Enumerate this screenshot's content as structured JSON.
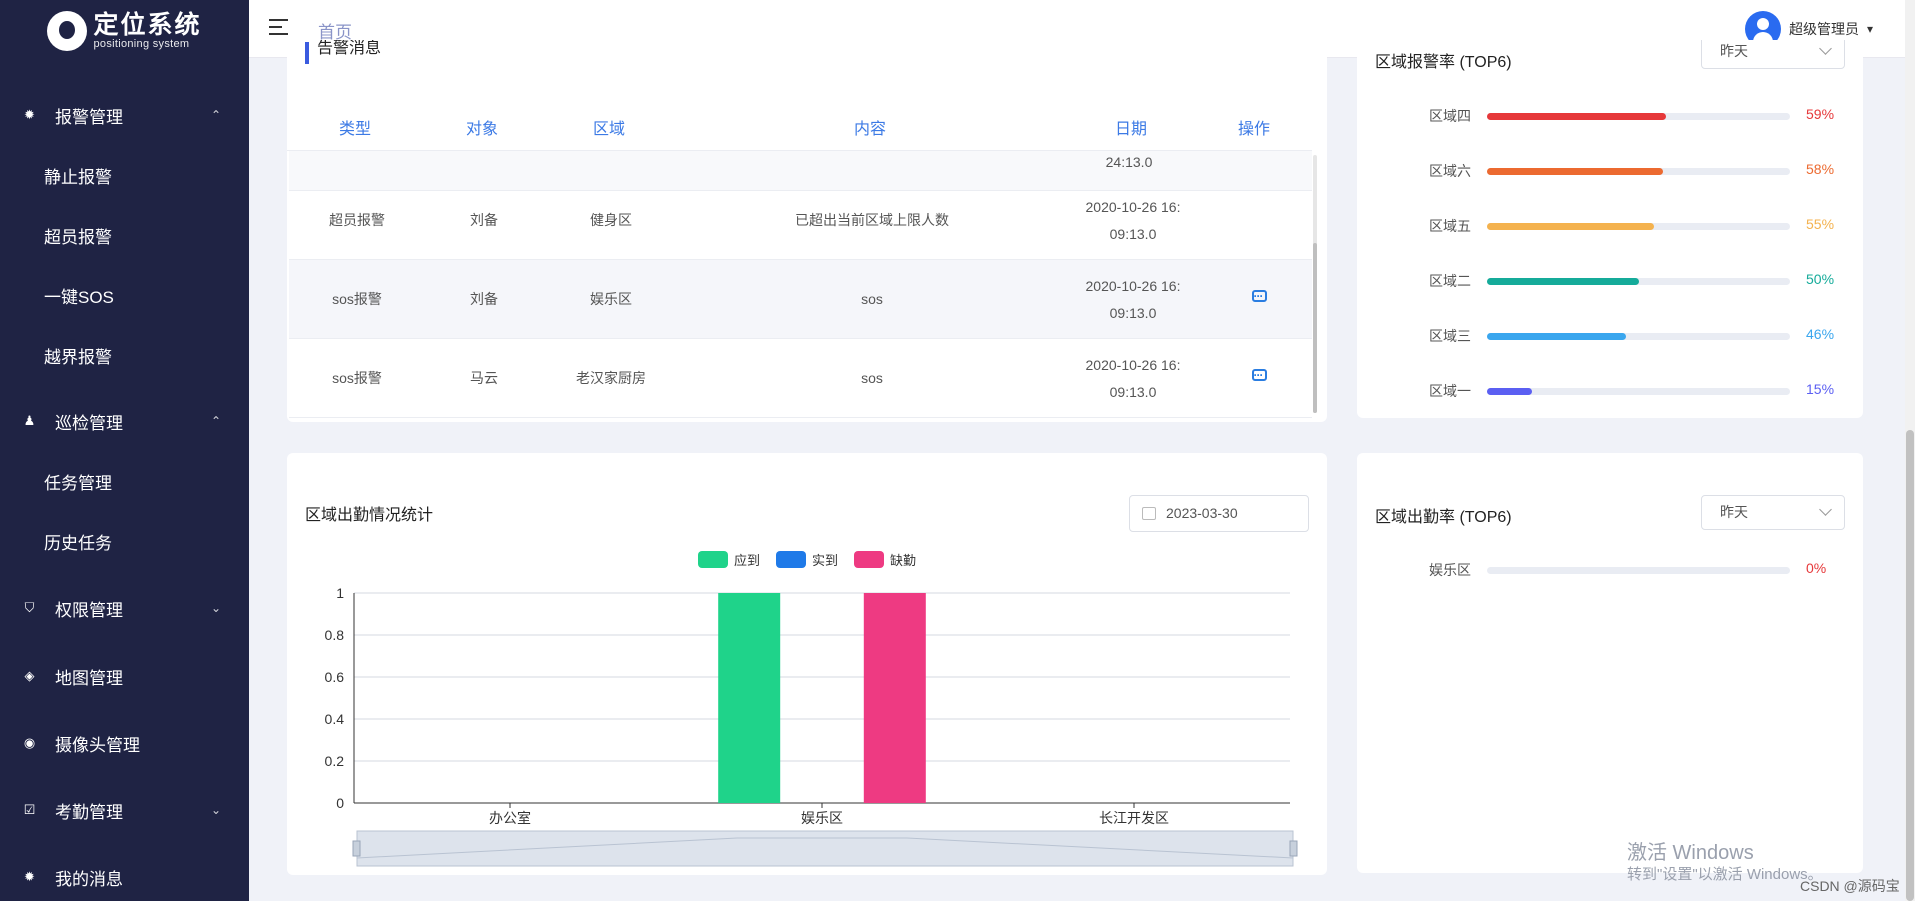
{
  "app": {
    "title": "定位系统",
    "subtitle": "positioning system"
  },
  "sidebar": {
    "groups": [
      {
        "label": "报警管理",
        "icon": "alarm-light-icon",
        "chevron": "⌃",
        "items": [
          "静止报警",
          "超员报警",
          "一键SOS",
          "越界报警"
        ]
      },
      {
        "label": "巡检管理",
        "icon": "patrol-user-icon",
        "chevron": "⌃",
        "items": [
          "任务管理",
          "历史任务"
        ]
      },
      {
        "label": "权限管理",
        "icon": "shield-icon",
        "chevron": "⌄",
        "items": []
      },
      {
        "label": "地图管理",
        "icon": "map-icon",
        "chevron": "",
        "items": []
      },
      {
        "label": "摄像头管理",
        "icon": "camera-icon",
        "chevron": "",
        "items": []
      },
      {
        "label": "考勤管理",
        "icon": "calendar-check-icon",
        "chevron": "⌄",
        "items": []
      },
      {
        "label": "我的消息",
        "icon": "message-icon",
        "chevron": "",
        "items": []
      }
    ]
  },
  "header": {
    "breadcrumb": "首页",
    "user": "超级管理员",
    "user_caret": "▾"
  },
  "alarm": {
    "title": "告警消息",
    "columns": [
      "类型",
      "对象",
      "区域",
      "内容",
      "日期",
      "操作"
    ],
    "partial_row_text": "24:13.0",
    "rows": [
      {
        "type": "超员报警",
        "target": "刘备",
        "area": "健身区",
        "content": "已超出当前区域上限人数",
        "date1": "2020-10-26 16:",
        "date2": "09:13.0",
        "has_action": false
      },
      {
        "type": "sos报警",
        "target": "刘备",
        "area": "娱乐区",
        "content": "sos",
        "date1": "2020-10-26 16:",
        "date2": "09:13.0",
        "has_action": true
      },
      {
        "type": "sos报警",
        "target": "马云",
        "area": "老汉家厨房",
        "content": "sos",
        "date1": "2020-10-26 16:",
        "date2": "09:13.0",
        "has_action": true
      }
    ]
  },
  "alarm_rank": {
    "title": "区域报警率 (TOP6)",
    "select": "昨天",
    "items": [
      {
        "label": "区域四",
        "value": "59%",
        "pct": 59,
        "color": "#e6383a"
      },
      {
        "label": "区域六",
        "value": "58%",
        "pct": 58,
        "color": "#ec6a30"
      },
      {
        "label": "区域五",
        "value": "55%",
        "pct": 55,
        "color": "#f4b24e"
      },
      {
        "label": "区域二",
        "value": "50%",
        "pct": 50,
        "color": "#15ab9a"
      },
      {
        "label": "区域三",
        "value": "46%",
        "pct": 46,
        "color": "#3aa6ee"
      },
      {
        "label": "区域一",
        "value": "15%",
        "pct": 15,
        "color": "#5b5ff2"
      }
    ]
  },
  "attendance_chart": {
    "title": "区域出勤情况统计",
    "date": "2023-03-30"
  },
  "chart_data": {
    "type": "bar",
    "categories": [
      "办公室",
      "娱乐区",
      "长江开发区"
    ],
    "series": [
      {
        "name": "应到",
        "values": [
          0,
          1,
          0
        ],
        "color": "#1fd38a"
      },
      {
        "name": "实到",
        "values": [
          0,
          0,
          0
        ],
        "color": "#1f7ae8"
      },
      {
        "name": "缺勤",
        "values": [
          0,
          1,
          0
        ],
        "color": "#ee3a82"
      }
    ],
    "yticks": [
      "0",
      "0.2",
      "0.4",
      "0.6",
      "0.8",
      "1"
    ],
    "ylim": [
      0,
      1
    ],
    "grid": true,
    "legend": "top-center"
  },
  "attend_rank": {
    "title": "区域出勤率 (TOP6)",
    "select": "昨天",
    "items": [
      {
        "label": "娱乐区",
        "value": "0%",
        "pct": 0,
        "color": "#e6383a"
      }
    ]
  },
  "watermark": {
    "line1": "激活 Windows",
    "line2": "转到\"设置\"以激活 Windows。"
  },
  "credit": "CSDN @源码宝"
}
